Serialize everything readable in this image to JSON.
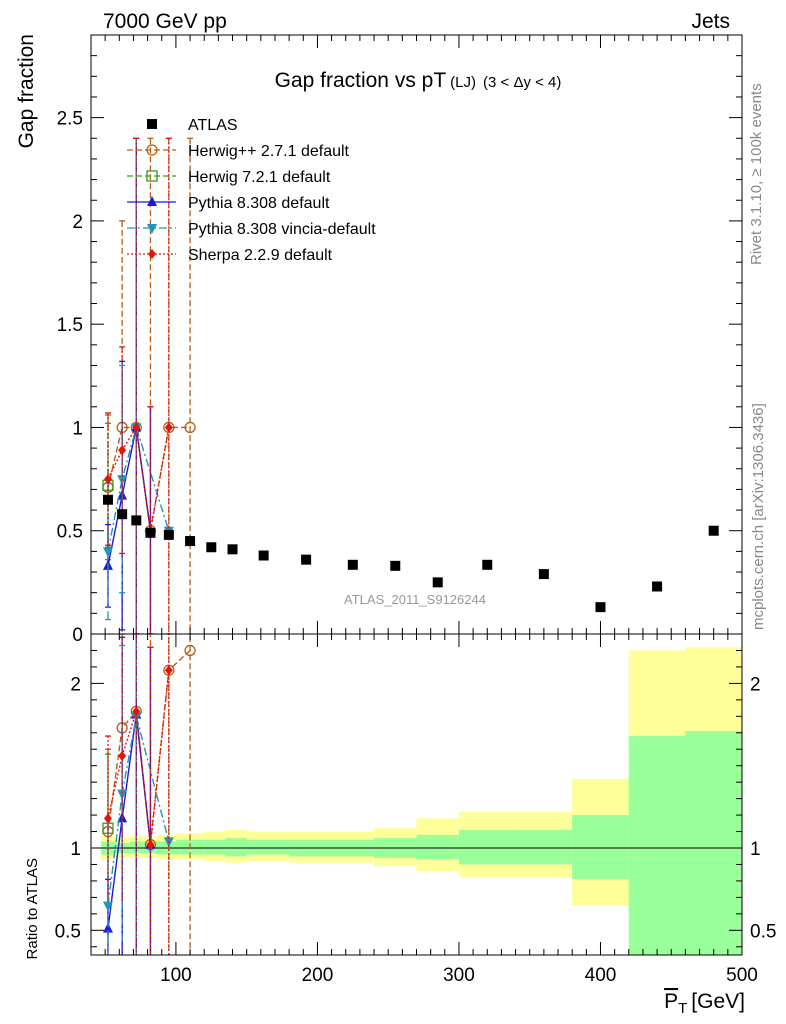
{
  "header": {
    "left": "7000 GeV pp",
    "right": "Jets"
  },
  "side_labels": {
    "rivet": "Rivet 3.1.10, ≥ 100k events",
    "mcplots": "mcplots.cern.ch [arXiv:1306.3436]"
  },
  "colors": {
    "ATLAS": "#000000",
    "herwigpp": "#b85d14",
    "herwig7": "#3a9a1e",
    "pythia": "#1c1cd4",
    "vincia": "#1f97b5",
    "sherpa": "#e8120c",
    "band_outer": "#ffff99",
    "band_inner": "#99ff99"
  },
  "chart_data": [
    {
      "type": "line",
      "title": "Gap fraction vs pT (LJ) (3 < Δy < 4)",
      "title_main": "Gap fraction vs pT",
      "title_sub1": "(LJ)",
      "title_sub2": "(3 < Δy < 4)",
      "watermark": "ATLAS_2011_S9126244",
      "ylabel": "Gap fraction",
      "xlim": [
        40,
        500
      ],
      "ylim": [
        0,
        2.9
      ],
      "yticks": [
        0.5,
        1,
        1.5,
        2,
        2.5
      ],
      "ytick_labels": [
        "0.5",
        "1",
        "1.5",
        "2",
        "2.5"
      ],
      "ytick_zero_label": "0",
      "legend_position": "top-left",
      "series": [
        {
          "name": "ATLAS",
          "label": "ATLAS",
          "style": "square",
          "x": [
            52,
            62,
            72,
            82,
            95,
            110,
            125,
            140,
            162,
            192,
            225,
            255,
            285,
            320,
            360,
            400,
            440,
            480
          ],
          "y": [
            0.65,
            0.58,
            0.55,
            0.49,
            0.48,
            0.45,
            0.42,
            0.41,
            0.38,
            0.36,
            0.335,
            0.33,
            0.25,
            0.335,
            0.29,
            0.13,
            0.23,
            0.5
          ]
        },
        {
          "name": "herwigpp",
          "label": "Herwig++ 2.7.1 default",
          "style": "open-circle",
          "dash": "6,3",
          "x": [
            52,
            62,
            72,
            82,
            95,
            110
          ],
          "y": [
            0.71,
            1.0,
            1.0,
            0.5,
            1.0,
            1.0
          ],
          "err": [
            0.35,
            1.0,
            1.4,
            1.9,
            1.4,
            1.4
          ]
        },
        {
          "name": "herwig7",
          "label": "Herwig 7.2.1 default",
          "style": "open-square",
          "dash": "6,3",
          "x": [
            52
          ],
          "y": [
            0.72
          ],
          "err": [
            0.3
          ]
        },
        {
          "name": "pythia",
          "label": "Pythia 8.308 default",
          "style": "triangle-up",
          "dash": "",
          "x": [
            52,
            62,
            72,
            82
          ],
          "y": [
            0.33,
            0.67,
            1.0,
            0.5
          ],
          "err": [
            0.2,
            0.65,
            1.4,
            0.6
          ]
        },
        {
          "name": "vincia",
          "label": "Pythia 8.308 vincia-default",
          "style": "triangle-down",
          "dash": "8,3,2,3",
          "x": [
            52,
            62,
            72,
            95
          ],
          "y": [
            0.4,
            0.75,
            1.0,
            0.5
          ],
          "err": [
            0.33,
            0.55,
            1.4,
            0.0
          ]
        },
        {
          "name": "sherpa",
          "label": "Sherpa 2.2.9 default",
          "style": "diamond",
          "dash": "2,2",
          "x": [
            52,
            62,
            72,
            82,
            95
          ],
          "y": [
            0.75,
            0.89,
            1.0,
            0.5,
            1.0
          ],
          "err": [
            0.32,
            0.5,
            1.4,
            0.6,
            1.4
          ]
        }
      ]
    },
    {
      "type": "line",
      "title": "Ratio to ATLAS",
      "ylabel": "Ratio to ATLAS",
      "xlabel": "P_T [GeV]",
      "xlabel_main": "P",
      "xlabel_sub": "T",
      "xlabel_unit": "[GeV]",
      "xlim": [
        40,
        500
      ],
      "ylim": [
        0.35,
        2.3
      ],
      "xticks": [
        100,
        200,
        300,
        400,
        500
      ],
      "xtick_labels": [
        "100",
        "200",
        "300",
        "400",
        "500"
      ],
      "yticks": [
        0.5,
        1,
        2
      ],
      "ytick_labels": [
        "0.5",
        "1",
        "2"
      ],
      "bands": {
        "edges": [
          47,
          57,
          67,
          77,
          87,
          100,
          120,
          135,
          150,
          180,
          210,
          240,
          270,
          300,
          340,
          380,
          420,
          460,
          500
        ],
        "outer_low": [
          0.93,
          0.94,
          0.94,
          0.94,
          0.93,
          0.93,
          0.92,
          0.91,
          0.92,
          0.91,
          0.91,
          0.89,
          0.86,
          0.82,
          0.82,
          0.65,
          0.58,
          0.53,
          0.62
        ],
        "outer_high": [
          1.07,
          1.06,
          1.07,
          1.07,
          1.08,
          1.09,
          1.1,
          1.11,
          1.1,
          1.1,
          1.1,
          1.12,
          1.18,
          1.22,
          1.22,
          1.42,
          2.2,
          2.22,
          1.86
        ],
        "inner_low": [
          0.96,
          0.97,
          0.97,
          0.97,
          0.96,
          0.96,
          0.96,
          0.95,
          0.96,
          0.95,
          0.95,
          0.94,
          0.93,
          0.9,
          0.9,
          0.81,
          0.0,
          0.0,
          0.0
        ],
        "inner_high": [
          1.04,
          1.03,
          1.04,
          1.04,
          1.04,
          1.05,
          1.05,
          1.06,
          1.05,
          1.05,
          1.05,
          1.06,
          1.08,
          1.11,
          1.11,
          1.2,
          1.68,
          1.71,
          1.5
        ]
      },
      "series": [
        {
          "name": "herwigpp",
          "x": [
            52,
            62,
            72,
            82,
            95,
            110
          ],
          "y": [
            1.1,
            1.73,
            1.83,
            1.02,
            2.08,
            2.2
          ],
          "err": [
            0.5,
            1.5,
            2.0,
            2.5,
            2.0,
            2.0
          ]
        },
        {
          "name": "herwig7",
          "x": [
            52
          ],
          "y": [
            1.12
          ],
          "err": [
            0.45
          ]
        },
        {
          "name": "pythia",
          "x": [
            52,
            62,
            72,
            82
          ],
          "y": [
            0.51,
            1.18,
            1.81,
            1.02
          ],
          "err": [
            0.3,
            1.1,
            2.0,
            1.2
          ]
        },
        {
          "name": "vincia",
          "x": [
            52,
            62,
            72,
            95
          ],
          "y": [
            0.65,
            1.33,
            1.8,
            1.04
          ],
          "err": [
            0.5,
            0.9,
            2.0,
            0.0
          ]
        },
        {
          "name": "sherpa",
          "x": [
            52,
            62,
            72,
            82,
            95
          ],
          "y": [
            1.18,
            1.56,
            1.83,
            1.02,
            2.08
          ],
          "err": [
            0.5,
            0.9,
            2.0,
            1.2,
            2.0
          ]
        }
      ]
    }
  ]
}
